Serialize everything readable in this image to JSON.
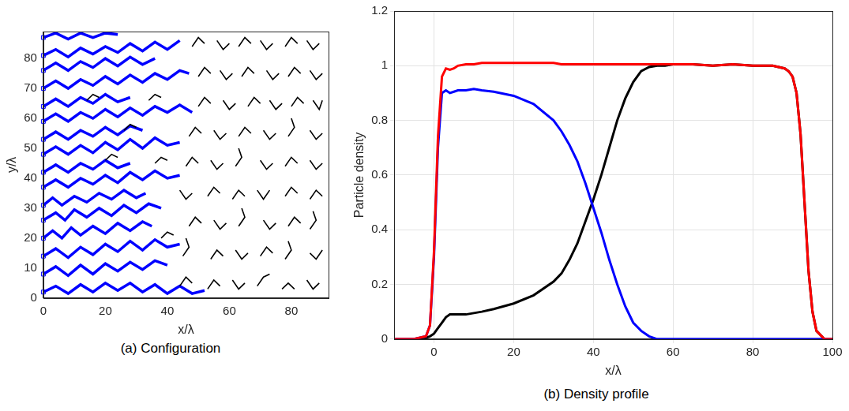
{
  "chart_data": [
    {
      "type": "line",
      "title": "(a) Configuration",
      "xlabel": "x/λ",
      "ylabel": "y/λ",
      "xlim": [
        0,
        92
      ],
      "ylim": [
        0,
        89
      ],
      "xticks": [
        0,
        20,
        40,
        60,
        80
      ],
      "yticks": [
        0,
        10,
        20,
        30,
        40,
        50,
        60,
        70,
        80
      ],
      "grid": false,
      "series": [
        {
          "color": "#000000",
          "line_style": "solid",
          "marker": "none",
          "x": [
            44,
            46,
            48,
            null,
            53,
            55,
            57,
            null,
            61,
            63,
            65,
            null,
            69,
            71,
            73,
            null,
            77,
            79,
            81,
            null,
            85,
            87,
            89,
            null,
            45,
            47,
            46,
            null,
            54,
            56,
            58,
            null,
            62,
            64,
            66,
            null,
            70,
            72,
            74,
            null,
            78,
            80,
            79,
            null,
            86,
            88,
            90,
            null,
            47,
            49,
            51,
            null,
            55,
            57,
            59,
            null,
            63,
            65,
            64,
            null,
            71,
            73,
            75,
            null,
            79,
            81,
            83,
            null,
            86,
            88,
            87,
            null,
            44,
            46,
            48,
            null,
            53,
            55,
            57,
            null,
            61,
            63,
            65,
            null,
            69,
            71,
            73,
            null,
            78,
            80,
            82,
            null,
            86,
            88,
            90,
            null,
            46,
            48,
            50,
            null,
            54,
            56,
            58,
            null,
            62,
            64,
            63,
            null,
            70,
            72,
            74,
            null,
            78,
            80,
            82,
            null,
            86,
            88,
            90,
            null,
            47,
            49,
            51,
            null,
            55,
            57,
            59,
            null,
            63,
            65,
            67,
            null,
            71,
            73,
            75,
            null,
            79,
            81,
            80,
            null,
            86,
            88,
            90,
            null,
            50,
            52,
            54,
            null,
            58,
            60,
            62,
            null,
            66,
            68,
            70,
            null,
            73,
            75,
            77,
            null,
            80,
            82,
            84,
            null,
            87,
            89,
            90,
            null,
            50,
            52,
            54,
            null,
            57,
            59,
            61,
            null,
            64,
            66,
            68,
            null,
            72,
            74,
            76,
            null,
            79,
            81,
            83,
            null,
            86,
            88,
            90,
            null,
            48,
            50,
            52,
            null,
            56,
            58,
            60,
            null,
            63,
            65,
            67,
            null,
            70,
            72,
            74,
            null,
            78,
            80,
            82,
            null,
            85,
            87,
            89,
            null,
            20,
            22,
            24,
            null,
            26,
            28,
            30,
            null,
            14,
            16,
            18,
            null,
            36,
            38,
            40,
            null,
            38,
            40,
            42,
            null,
            34,
            36,
            38
          ],
          "y": [
            4,
            7,
            5,
            null,
            3,
            6,
            4,
            null,
            6,
            3,
            5,
            null,
            4,
            7,
            8,
            null,
            3,
            5,
            3,
            null,
            6,
            3,
            5,
            null,
            14,
            17,
            20,
            null,
            13,
            16,
            14,
            null,
            16,
            13,
            15,
            null,
            14,
            17,
            15,
            null,
            13,
            16,
            19,
            null,
            15,
            13,
            16,
            null,
            24,
            27,
            25,
            null,
            26,
            23,
            25,
            null,
            24,
            27,
            30,
            null,
            26,
            23,
            25,
            null,
            24,
            27,
            25,
            null,
            23,
            26,
            29,
            null,
            36,
            33,
            35,
            null,
            34,
            37,
            35,
            null,
            33,
            36,
            34,
            null,
            36,
            33,
            36,
            null,
            34,
            37,
            35,
            null,
            33,
            36,
            34,
            null,
            44,
            47,
            45,
            null,
            46,
            43,
            45,
            null,
            44,
            47,
            50,
            null,
            46,
            43,
            45,
            null,
            44,
            47,
            45,
            null,
            46,
            43,
            45,
            null,
            54,
            57,
            55,
            null,
            56,
            53,
            55,
            null,
            54,
            57,
            55,
            null,
            56,
            53,
            55,
            null,
            54,
            57,
            60,
            null,
            56,
            53,
            55,
            null,
            64,
            67,
            65,
            null,
            66,
            63,
            65,
            null,
            64,
            67,
            65,
            null,
            66,
            63,
            65,
            null,
            64,
            67,
            65,
            null,
            66,
            63,
            66,
            null,
            74,
            77,
            75,
            null,
            76,
            73,
            75,
            null,
            74,
            77,
            75,
            null,
            76,
            73,
            75,
            null,
            74,
            77,
            75,
            null,
            76,
            73,
            75,
            null,
            84,
            87,
            85,
            null,
            86,
            83,
            85,
            null,
            84,
            87,
            85,
            null,
            86,
            83,
            85,
            null,
            84,
            87,
            85,
            null,
            86,
            83,
            85,
            null,
            46,
            48,
            47,
            null,
            56,
            58,
            57,
            null,
            66,
            68,
            67,
            null,
            45,
            47,
            46,
            null,
            20,
            22,
            21,
            null,
            66,
            68,
            67
          ]
        },
        {
          "color": "#0000ff",
          "line_style": "solid",
          "marker": "none",
          "x": [
            0,
            4,
            8,
            12,
            16,
            20,
            24,
            28,
            32,
            36,
            40,
            44,
            48,
            52,
            null,
            0,
            4,
            8,
            12,
            16,
            20,
            24,
            28,
            32,
            36,
            40,
            null,
            0,
            4,
            8,
            12,
            16,
            20,
            24,
            28,
            32,
            36,
            40,
            44,
            null,
            0,
            3,
            6,
            9,
            12,
            16,
            20,
            24,
            28,
            32,
            35,
            null,
            0,
            4,
            7,
            10,
            14,
            18,
            22,
            26,
            30,
            34,
            38,
            null,
            0,
            3,
            6,
            10,
            14,
            18,
            22,
            26,
            30,
            33,
            null,
            0,
            4,
            8,
            12,
            16,
            20,
            24,
            28,
            32,
            36,
            40,
            44,
            null,
            0,
            4,
            8,
            12,
            16,
            20,
            24,
            28,
            null,
            0,
            4,
            8,
            12,
            16,
            20,
            24,
            28,
            32,
            36,
            40,
            44,
            null,
            0,
            4,
            8,
            12,
            16,
            20,
            24,
            28,
            32,
            null,
            0,
            4,
            8,
            12,
            16,
            20,
            24,
            28,
            32,
            36,
            40,
            44,
            48,
            null,
            0,
            4,
            8,
            12,
            16,
            20,
            24,
            28,
            null,
            0,
            4,
            8,
            12,
            16,
            20,
            24,
            28,
            32,
            36,
            40,
            44,
            47,
            null,
            0,
            4,
            8,
            12,
            16,
            20,
            24,
            28,
            32,
            36,
            null,
            0,
            4,
            8,
            12,
            16,
            20,
            24,
            28,
            32,
            36,
            40,
            44,
            null,
            0,
            4,
            8,
            12,
            16,
            20,
            24
          ],
          "y": [
            2,
            4,
            1.5,
            4.5,
            2,
            5,
            2.5,
            5,
            2,
            4.5,
            1.5,
            4,
            1.5,
            2.5,
            null,
            8,
            10.5,
            7.5,
            11,
            8,
            11.5,
            9,
            12,
            9.5,
            12.5,
            11,
            null,
            14,
            16.5,
            13.5,
            17,
            14.5,
            18,
            15.5,
            19,
            16,
            19.5,
            17,
            18,
            null,
            20,
            22.5,
            20,
            23.5,
            21,
            24,
            21.5,
            25,
            22.5,
            25.5,
            24,
            null,
            26,
            28.5,
            26,
            29.5,
            27,
            30,
            27.5,
            31,
            28.5,
            31.5,
            30,
            null,
            31,
            33.5,
            31,
            34,
            32,
            35,
            33,
            36,
            33.5,
            35,
            null,
            37,
            39.5,
            37,
            40,
            38,
            41,
            38.5,
            42,
            39.5,
            42.5,
            40,
            41,
            null,
            42,
            44.5,
            42,
            45,
            43,
            46,
            43.5,
            45,
            null,
            48,
            50.5,
            48,
            51,
            48.5,
            52,
            49.5,
            53,
            50,
            53.5,
            51,
            52,
            null,
            53,
            55.5,
            53,
            56,
            54,
            57,
            54.5,
            57.5,
            56,
            null,
            59,
            61.5,
            59,
            62,
            60,
            63,
            60.5,
            63.5,
            61,
            64,
            62,
            64.5,
            62,
            null,
            64,
            66.5,
            64,
            67,
            65,
            68,
            65.5,
            67,
            null,
            70,
            72.5,
            70,
            73,
            71,
            74,
            71.5,
            74.5,
            72,
            75,
            73,
            76,
            75,
            null,
            76,
            78.5,
            76,
            79,
            77,
            80,
            77.5,
            80.5,
            78,
            80,
            null,
            81,
            83,
            80.5,
            83.5,
            81.5,
            84,
            82,
            85,
            82.5,
            85.5,
            83,
            86,
            null,
            87,
            88.5,
            86.5,
            88.5,
            87,
            88.5,
            88
          ]
        },
        {
          "color": "#0000ff",
          "line_style": "none",
          "marker": "square",
          "x": [
            0,
            0,
            0,
            0,
            0,
            0,
            0,
            0,
            0,
            0,
            0,
            0,
            0,
            0,
            0,
            0
          ],
          "y": [
            2,
            8,
            14,
            20,
            26,
            31,
            37,
            42,
            48,
            53,
            59,
            64,
            70,
            76,
            81,
            87
          ]
        }
      ]
    },
    {
      "type": "line",
      "title": "(b) Density profile",
      "xlabel": "x/λ",
      "ylabel": "Particle density",
      "xlim": [
        -10,
        100
      ],
      "ylim": [
        0,
        1.2
      ],
      "xticks": [
        0,
        20,
        40,
        60,
        80,
        100
      ],
      "yticks": [
        0,
        0.2,
        0.4,
        0.6,
        0.8,
        1,
        1.2
      ],
      "grid": true,
      "x": [
        -10,
        -5,
        -2,
        -1,
        0,
        1,
        2,
        3,
        4,
        5,
        6,
        8,
        10,
        12,
        15,
        20,
        25,
        30,
        32,
        34,
        36,
        38,
        40,
        42,
        44,
        46,
        48,
        50,
        52,
        54,
        56,
        58,
        60,
        65,
        70,
        75,
        80,
        85,
        88,
        89,
        90,
        91,
        92,
        93,
        94,
        95,
        96,
        98,
        100
      ],
      "series": [
        {
          "color": "#ff0000",
          "line_style": "solid",
          "marker": "none",
          "values": [
            0,
            0,
            0.01,
            0.05,
            0.32,
            0.74,
            0.96,
            0.99,
            0.985,
            0.99,
            1.0,
            1.005,
            1.005,
            1.01,
            1.01,
            1.01,
            1.01,
            1.01,
            1.005,
            1.005,
            1.005,
            1.005,
            1.005,
            1.005,
            1.005,
            1.005,
            1.005,
            1.005,
            1.005,
            1.005,
            1.005,
            1.005,
            1.005,
            1.005,
            1.0,
            1.005,
            1.0,
            1.0,
            0.99,
            0.98,
            0.96,
            0.9,
            0.75,
            0.5,
            0.25,
            0.1,
            0.03,
            0,
            0
          ]
        },
        {
          "color": "#0000ff",
          "line_style": "solid",
          "marker": "none",
          "values": [
            0,
            0,
            0.01,
            0.05,
            0.3,
            0.7,
            0.9,
            0.91,
            0.9,
            0.905,
            0.91,
            0.91,
            0.915,
            0.91,
            0.905,
            0.89,
            0.86,
            0.8,
            0.76,
            0.71,
            0.65,
            0.57,
            0.48,
            0.39,
            0.29,
            0.2,
            0.12,
            0.06,
            0.03,
            0.01,
            0,
            0,
            0,
            0,
            0,
            0,
            0,
            0,
            0,
            0,
            0,
            0,
            0,
            0,
            0,
            0,
            0,
            0,
            0
          ]
        },
        {
          "color": "#000000",
          "line_style": "solid",
          "marker": "none",
          "values": [
            0,
            0,
            0.005,
            0.01,
            0.02,
            0.04,
            0.06,
            0.08,
            0.09,
            0.09,
            0.09,
            0.09,
            0.095,
            0.1,
            0.11,
            0.13,
            0.16,
            0.21,
            0.24,
            0.29,
            0.35,
            0.43,
            0.51,
            0.6,
            0.7,
            0.8,
            0.88,
            0.94,
            0.98,
            0.995,
            1.0,
            1.0,
            1.005,
            1.005,
            1.0,
            1.005,
            1.0,
            1.0,
            0.99,
            0.98,
            0.96,
            0.9,
            0.75,
            0.5,
            0.25,
            0.1,
            0.03,
            0,
            0
          ]
        }
      ]
    }
  ]
}
